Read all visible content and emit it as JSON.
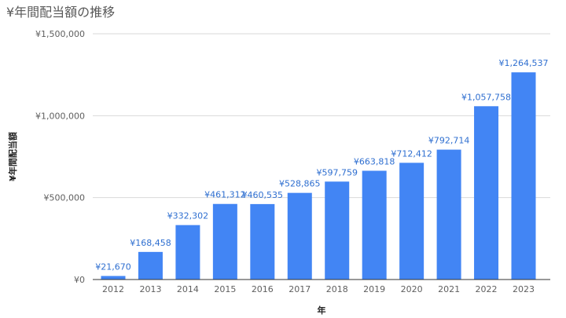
{
  "chart_data": {
    "type": "bar",
    "title": "¥年間配当額の推移",
    "xlabel": "年",
    "ylabel": "¥年間配当額",
    "categories": [
      "2012",
      "2013",
      "2014",
      "2015",
      "2016",
      "2017",
      "2018",
      "2019",
      "2020",
      "2021",
      "2022",
      "2023"
    ],
    "values": [
      21670,
      168458,
      332302,
      461312,
      460535,
      528865,
      597759,
      663818,
      712412,
      792714,
      1057758,
      1264537
    ],
    "data_labels": [
      "¥21,670",
      "¥168,458",
      "¥332,302",
      "¥461,312",
      "¥460,535",
      "¥528,865",
      "¥597,759",
      "¥663,818",
      "¥712,412",
      "¥792,714",
      "¥1,057,758",
      "¥1,264,537"
    ],
    "ylim": [
      0,
      1500000
    ],
    "yticks": [
      0,
      500000,
      1000000,
      1500000
    ],
    "ytick_labels": [
      "¥0",
      "¥500,000",
      "¥1,000,000",
      "¥1,500,000"
    ],
    "grid": true,
    "legend": "none",
    "colors": {
      "bar": "#4285f4",
      "label": "#2f6fd0",
      "grid": "#d9d9d9"
    }
  }
}
